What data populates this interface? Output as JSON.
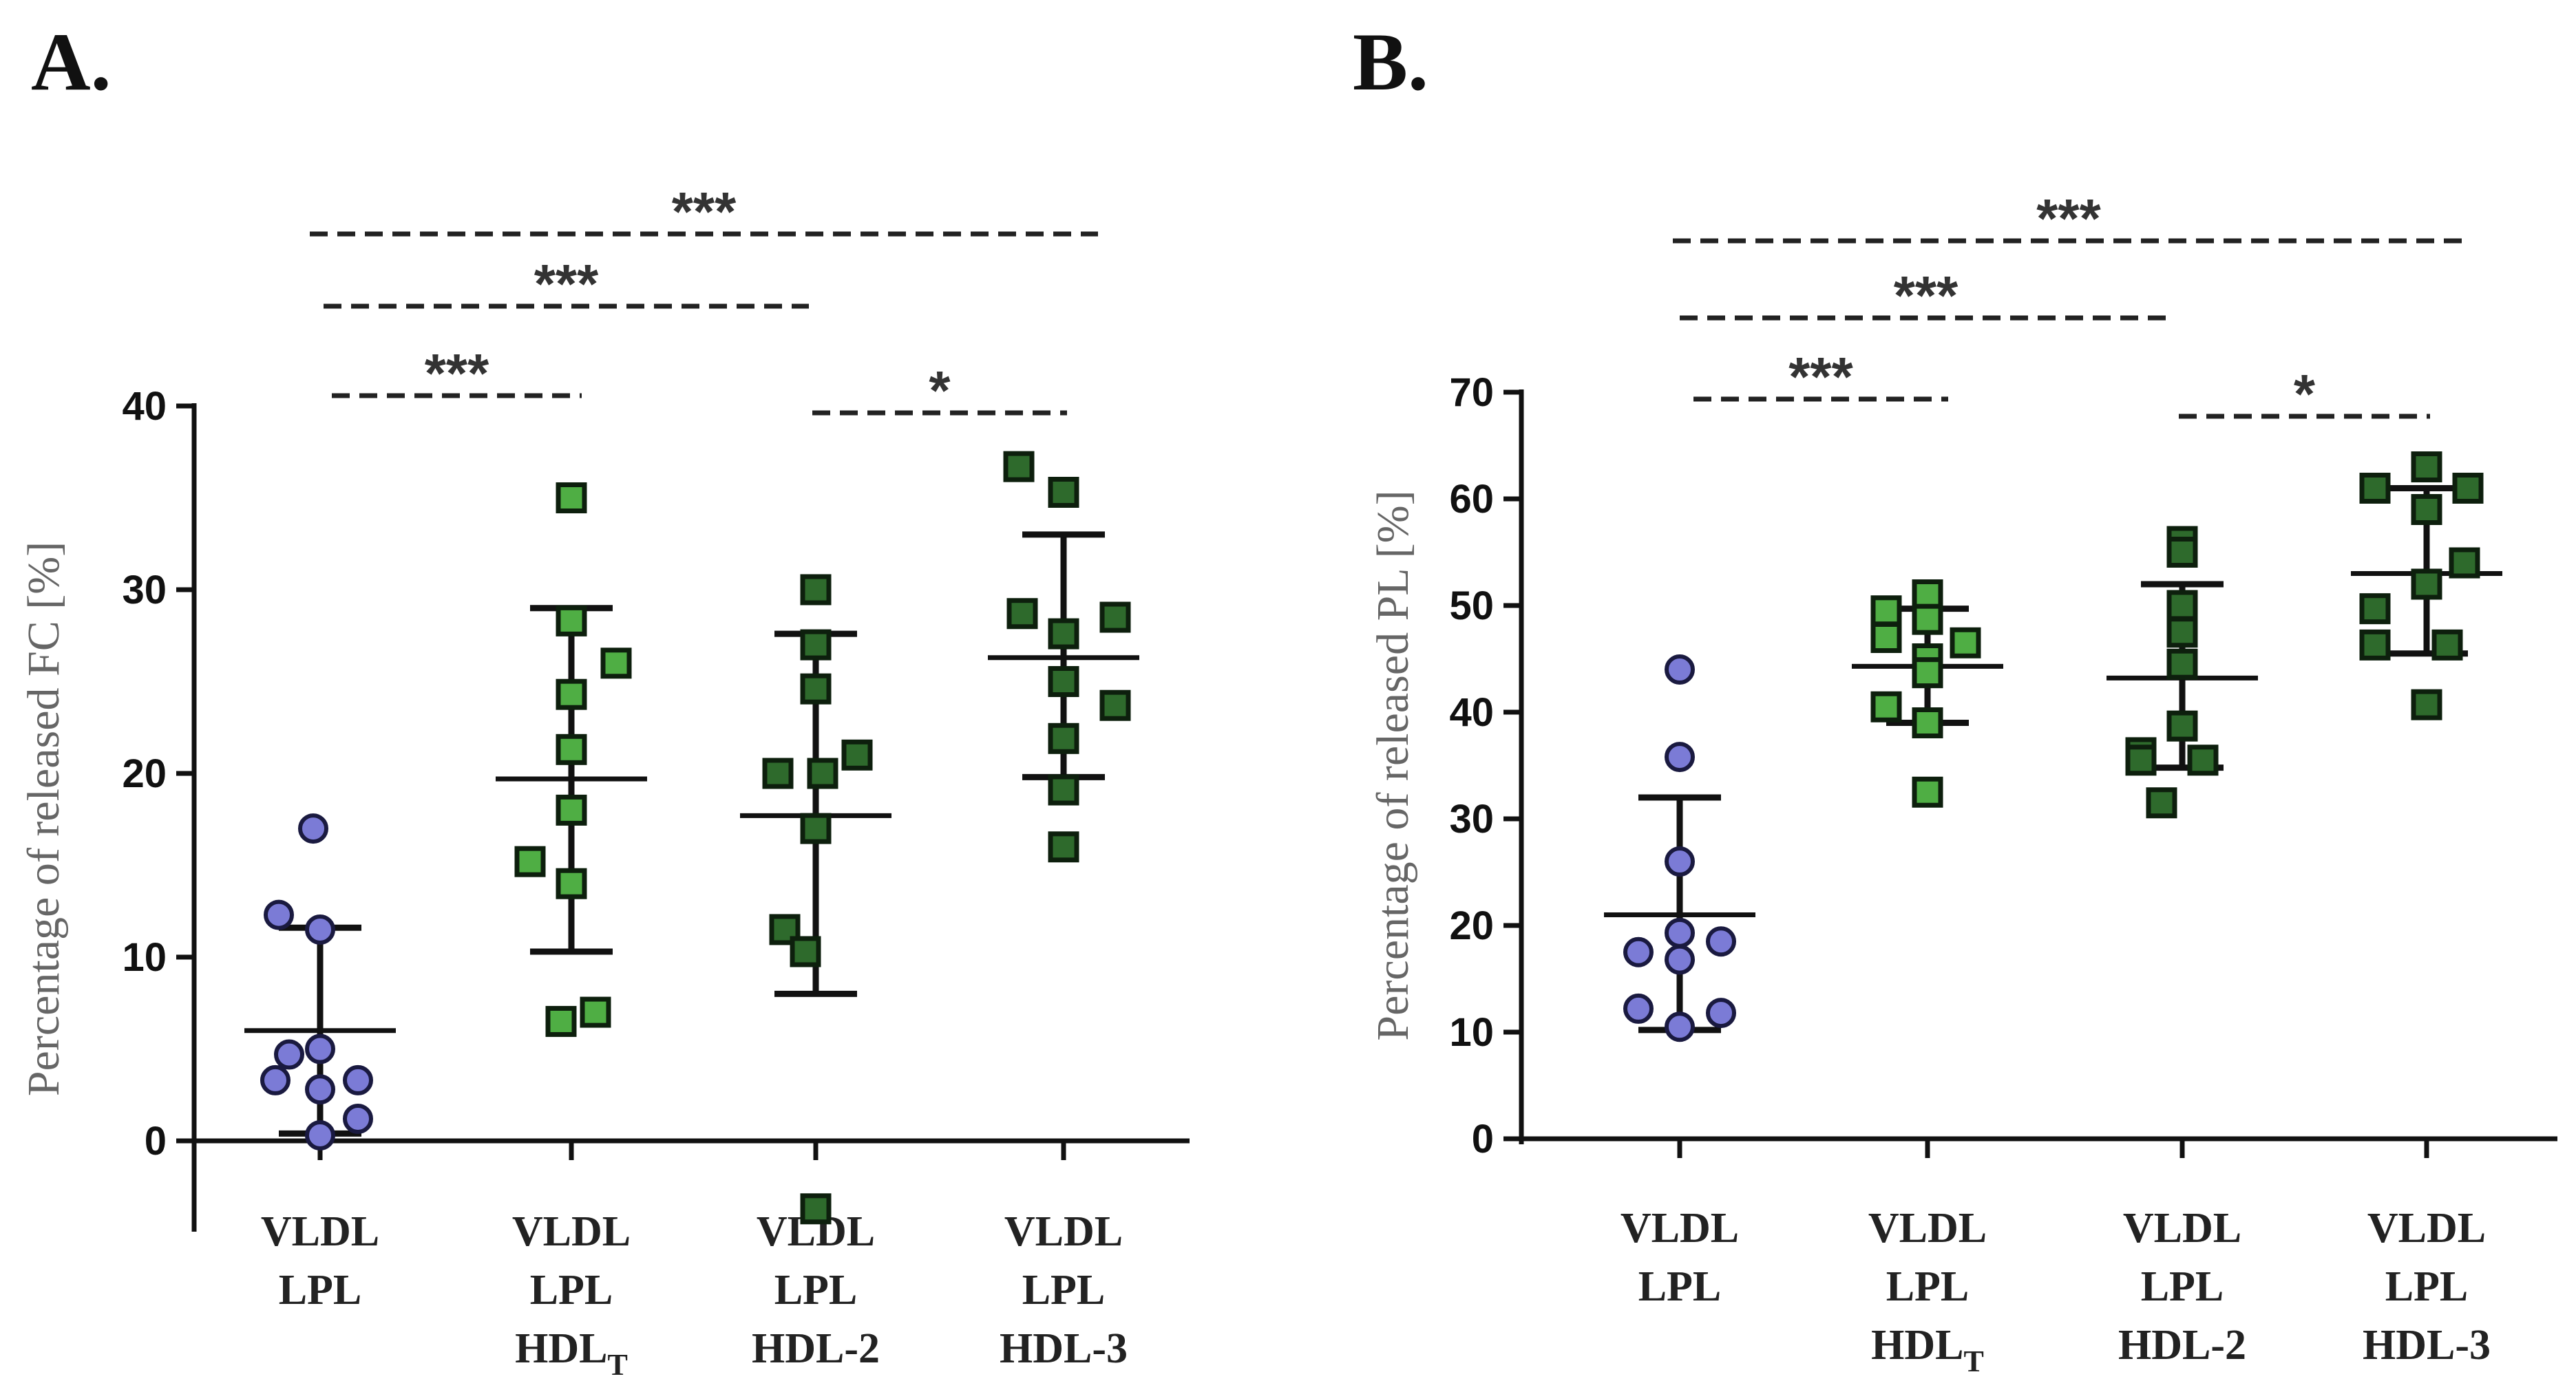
{
  "chart_data": [
    {
      "type": "scatter",
      "panel": "A.",
      "ylabel": "Percentage of released FC [%]",
      "ylim": [
        -5,
        40
      ],
      "yticks": [
        0,
        10,
        20,
        30,
        40
      ],
      "categories": [
        {
          "lines": [
            "VLDL",
            "LPL"
          ]
        },
        {
          "lines": [
            "VLDL",
            "LPL",
            "HDL"
          ],
          "subscript": "T"
        },
        {
          "lines": [
            "VLDL",
            "LPL",
            "HDL-2"
          ]
        },
        {
          "lines": [
            "VLDL",
            "LPL",
            "HDL-3"
          ]
        }
      ],
      "series": [
        {
          "marker": "circle",
          "color": "#7b7bd6",
          "points": [
            17,
            12.3,
            11.5,
            5,
            4.7,
            3.3,
            3.3,
            2.8,
            1.2,
            0.3
          ],
          "mean": 6,
          "sd": [
            0.4,
            11.6
          ]
        },
        {
          "marker": "square",
          "color": "#4fae44",
          "points": [
            35,
            28.3,
            26,
            24.3,
            21.3,
            18,
            15.2,
            14,
            7,
            6.5
          ],
          "mean": 19.7,
          "sd": [
            10.3,
            29
          ]
        },
        {
          "marker": "square",
          "color": "#2e6a2c",
          "points": [
            30,
            27,
            24.6,
            21,
            20,
            20,
            17,
            11.5,
            10.3,
            -3.7
          ],
          "mean": 17.7,
          "sd": [
            8,
            27.6
          ]
        },
        {
          "marker": "square",
          "color": "#2e6a2c",
          "points": [
            36.7,
            35.3,
            28.7,
            28.5,
            27.6,
            25,
            23.7,
            21.9,
            19.1,
            16
          ],
          "mean": 26.3,
          "sd": [
            19.8,
            33
          ]
        }
      ],
      "significance": [
        {
          "from": 0,
          "to": 1,
          "label": "***"
        },
        {
          "from": 0,
          "to": 2,
          "label": "***"
        },
        {
          "from": 0,
          "to": 3,
          "label": "***"
        },
        {
          "from": 2,
          "to": 3,
          "label": "*"
        }
      ]
    },
    {
      "type": "scatter",
      "panel": "B.",
      "ylabel": "Percentage of released  PL [%]",
      "ylim": [
        0,
        70
      ],
      "yticks": [
        0,
        10,
        20,
        30,
        40,
        50,
        60,
        70
      ],
      "categories": [
        {
          "lines": [
            "VLDL",
            "LPL"
          ]
        },
        {
          "lines": [
            "VLDL",
            "LPL",
            "HDL"
          ],
          "subscript": "T"
        },
        {
          "lines": [
            "VLDL",
            "LPL",
            "HDL-2"
          ]
        },
        {
          "lines": [
            "VLDL",
            "LPL",
            "HDL-3"
          ]
        }
      ],
      "series": [
        {
          "marker": "circle",
          "color": "#7b7bd6",
          "points": [
            44,
            35.8,
            26,
            19.3,
            18.5,
            17.5,
            16.8,
            12.2,
            11.8,
            10.5
          ],
          "mean": 21,
          "sd": [
            10.2,
            32
          ]
        },
        {
          "marker": "square",
          "color": "#4fae44",
          "points": [
            51,
            49.5,
            48.7,
            47,
            46.5,
            45,
            43.7,
            40.5,
            39,
            32.5
          ],
          "mean": 44.3,
          "sd": [
            39,
            49.7
          ]
        },
        {
          "marker": "square",
          "color": "#2e6a2c",
          "points": [
            56,
            55,
            50,
            47.5,
            44.5,
            38.7,
            36.2,
            35.5,
            35.5,
            31.5
          ],
          "mean": 43.2,
          "sd": [
            34.8,
            52
          ]
        },
        {
          "marker": "square",
          "color": "#2e6a2c",
          "points": [
            63,
            61,
            61,
            59,
            54,
            52,
            49.7,
            46.3,
            46.3,
            40.7
          ],
          "mean": 53,
          "sd": [
            45.5,
            61
          ]
        }
      ],
      "significance": [
        {
          "from": 0,
          "to": 1,
          "label": "***"
        },
        {
          "from": 0,
          "to": 2,
          "label": "***"
        },
        {
          "from": 0,
          "to": 3,
          "label": "***"
        },
        {
          "from": 2,
          "to": 3,
          "label": "*"
        }
      ]
    }
  ]
}
